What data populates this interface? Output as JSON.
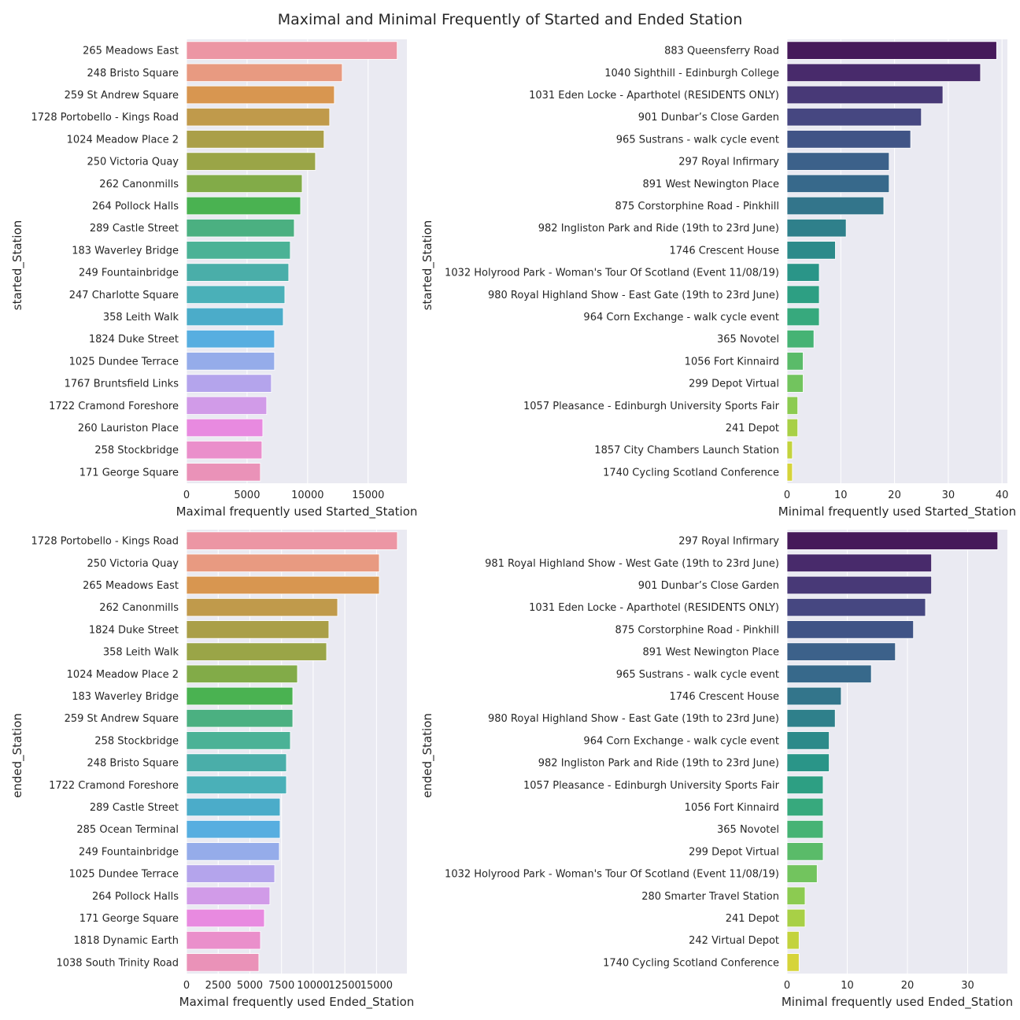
{
  "chart_data": {
    "title": "Maximal and Minimal Frequently of Started and Ended Station",
    "subplots": [
      {
        "type": "bar",
        "orientation": "horizontal",
        "ylabel": "started_Station",
        "xlabel": "Maximal frequently used Started_Station",
        "xlim": [
          0,
          18200
        ],
        "xticks": [
          0,
          5000,
          10000,
          15000
        ],
        "grid": true,
        "palette": "husl",
        "categories": [
          "265 Meadows East",
          "248 Bristo Square",
          "259 St Andrew Square",
          "1728 Portobello - Kings Road",
          "1024 Meadow Place 2",
          "250 Victoria Quay",
          "262 Canonmills",
          "264 Pollock Halls",
          "289 Castle Street",
          "183 Waverley Bridge",
          "249 Fountainbridge",
          "247 Charlotte Square",
          "358 Leith Walk",
          "1824 Duke Street",
          "1025 Dundee Terrace",
          "1767 Bruntsfield Links",
          "1722 Cramond Foreshore",
          "260 Lauriston Place",
          "258 Stockbridge",
          "171 George Square"
        ],
        "values": [
          17400,
          12860,
          12210,
          11820,
          11360,
          10650,
          9550,
          9420,
          8900,
          8570,
          8440,
          8120,
          7990,
          7270,
          7270,
          7010,
          6620,
          6300,
          6230,
          6100
        ]
      },
      {
        "type": "bar",
        "orientation": "horizontal",
        "ylabel": "started_Station",
        "xlabel": "Minimal frequently used Started_Station",
        "xlim": [
          0,
          41
        ],
        "xticks": [
          0,
          10,
          20,
          30,
          40
        ],
        "grid": true,
        "palette": "viridis",
        "categories": [
          "883 Queensferry Road",
          "1040 Sighthill - Edinburgh College",
          "1031 Eden Locke - Aparthotel (RESIDENTS ONLY)",
          "901 Dunbar’s Close Garden",
          "965 Sustrans - walk cycle event",
          "297 Royal Infirmary",
          "891 West Newington Place",
          "875 Corstorphine Road - Pinkhill",
          "982 Ingliston Park and Ride (19th to 23rd June)",
          "1746 Crescent House",
          "1032 Holyrood Park - Woman's Tour Of Scotland (Event 11/08/19)",
          "980 Royal Highland Show - East Gate (19th to 23rd June)",
          "964 Corn Exchange - walk cycle event",
          "365 Novotel",
          "1056 Fort Kinnaird",
          "299 Depot Virtual",
          "1057 Pleasance - Edinburgh University Sports Fair",
          "241 Depot",
          "1857 City Chambers Launch Station",
          "1740 Cycling Scotland Conference"
        ],
        "values": [
          39,
          36,
          29,
          25,
          23,
          19,
          19,
          18,
          11,
          9,
          6,
          6,
          6,
          5,
          3,
          3,
          2,
          2,
          1,
          1
        ]
      },
      {
        "type": "bar",
        "orientation": "horizontal",
        "ylabel": "ended_Station",
        "xlabel": "Maximal frequently used Ended_Station",
        "xlim": [
          0,
          17400
        ],
        "xticks": [
          0,
          2500,
          5000,
          7500,
          10000,
          12500,
          15000
        ],
        "grid": true,
        "palette": "husl",
        "categories": [
          "1728 Portobello - Kings Road",
          "250 Victoria Quay",
          "265 Meadows East",
          "262 Canonmills",
          "1824 Duke Street",
          "358 Leith Walk",
          "1024 Meadow Place 2",
          "183 Waverley Bridge",
          "259 St Andrew Square",
          "258 Stockbridge",
          "248 Bristo Square",
          "1722 Cramond Foreshore",
          "289 Castle Street",
          "285 Ocean Terminal",
          "249 Fountainbridge",
          "1025 Dundee Terrace",
          "264 Pollock Halls",
          "171 George Square",
          "1818 Dynamic Earth",
          "1038 South Trinity Road"
        ],
        "values": [
          16650,
          15220,
          15220,
          11930,
          11240,
          11060,
          8760,
          8390,
          8390,
          8200,
          7890,
          7890,
          7390,
          7390,
          7330,
          6960,
          6580,
          6150,
          5840,
          5710
        ]
      },
      {
        "type": "bar",
        "orientation": "horizontal",
        "ylabel": "ended_Station",
        "xlabel": "Minimal frequently used Ended_Station",
        "xlim": [
          0,
          36.6
        ],
        "xticks": [
          0,
          10,
          20,
          30
        ],
        "grid": true,
        "palette": "viridis",
        "categories": [
          "297 Royal Infirmary",
          "981 Royal Highland Show - West Gate (19th to 23rd June)",
          "901 Dunbar’s Close Garden",
          "1031 Eden Locke - Aparthotel (RESIDENTS ONLY)",
          "875 Corstorphine Road - Pinkhill",
          "891 West Newington Place",
          "965 Sustrans - walk cycle event",
          "1746 Crescent House",
          "980 Royal Highland Show - East Gate (19th to 23rd June)",
          "964 Corn Exchange - walk cycle event",
          "982 Ingliston Park and Ride (19th to 23rd June)",
          "1057 Pleasance - Edinburgh University Sports Fair",
          "1056 Fort Kinnaird",
          "365 Novotel",
          "299 Depot Virtual",
          "1032 Holyrood Park - Woman's Tour Of Scotland (Event 11/08/19)",
          "280 Smarter Travel Station",
          "241 Depot",
          "242 Virtual Depot",
          "1740 Cycling Scotland Conference"
        ],
        "values": [
          35,
          24,
          24,
          23,
          21,
          18,
          14,
          9,
          8,
          7,
          7,
          6,
          6,
          6,
          6,
          5,
          3,
          3,
          2,
          2
        ]
      }
    ],
    "colors": {
      "axes_bg": "#eaeaf2",
      "grid": "#ffffff",
      "husl": [
        "#ec96a4",
        "#e89a81",
        "#d89650",
        "#c09a4b",
        "#aa9f48",
        "#9aa547",
        "#82ab48",
        "#4ab251",
        "#4bb081",
        "#4bb296",
        "#4aaea9",
        "#4ab0b8",
        "#4bacc9",
        "#57aee0",
        "#95acea",
        "#b4a4ec",
        "#d19be8",
        "#e88ae0",
        "#ea8fcb",
        "#ea92b8"
      ],
      "viridis": [
        "#461a5a",
        "#482a6b",
        "#483977",
        "#464781",
        "#405486",
        "#3c618a",
        "#37698b",
        "#33758b",
        "#2f808b",
        "#2c8a8a",
        "#2a9588",
        "#2d9f83",
        "#37a97d",
        "#46b374",
        "#5abb69",
        "#72c45e",
        "#8ccb51",
        "#a8d046",
        "#c3d33d",
        "#d6d43a"
      ]
    }
  }
}
